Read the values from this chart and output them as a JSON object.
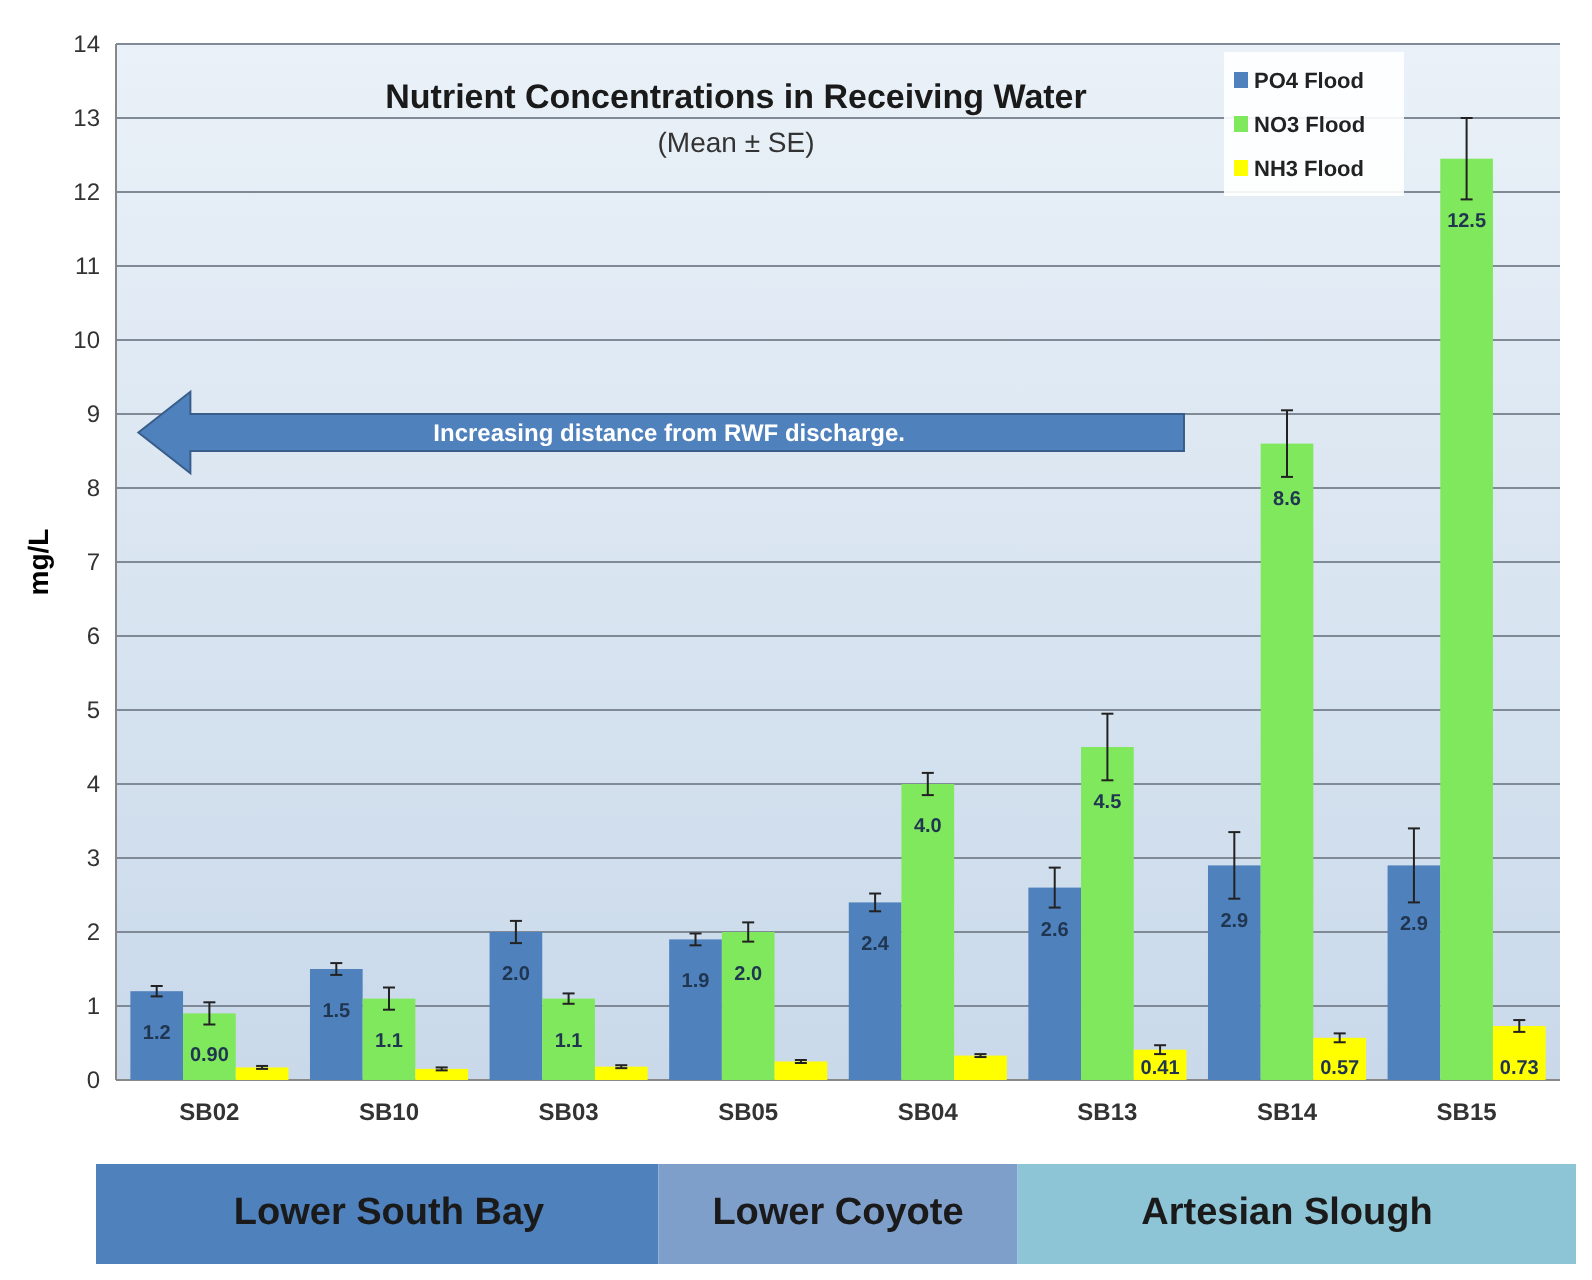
{
  "chart_data": {
    "type": "bar",
    "title": "Nutrient Concentrations in Receiving Water",
    "subtitle": "(Mean ± SE)",
    "ylabel": "mg/L",
    "categories": [
      "SB02",
      "SB10",
      "SB03",
      "SB05",
      "SB04",
      "SB13",
      "SB14",
      "SB15"
    ],
    "series": [
      {
        "name": "PO4 Flood",
        "color": "#4f81bd",
        "values": [
          1.2,
          1.5,
          2.0,
          1.9,
          2.4,
          2.6,
          2.9,
          2.9
        ],
        "errors": [
          0.07,
          0.08,
          0.15,
          0.08,
          0.12,
          0.27,
          0.45,
          0.5
        ],
        "value_labels": [
          "1.2",
          "1.5",
          "2.0",
          "1.9",
          "2.4",
          "2.6",
          "2.9",
          "2.9"
        ]
      },
      {
        "name": "NO3 Flood",
        "color": "#80e85c",
        "values": [
          0.9,
          1.1,
          1.1,
          2.0,
          4.0,
          4.5,
          8.6,
          12.45
        ],
        "errors": [
          0.15,
          0.15,
          0.07,
          0.13,
          0.15,
          0.45,
          0.45,
          0.55
        ],
        "value_labels": [
          "0.90",
          "1.1",
          "1.1",
          "2.0",
          "4.0",
          "4.5",
          "8.6",
          "12.5"
        ]
      },
      {
        "name": "NH3 Flood",
        "color": "#ffff00",
        "values": [
          0.17,
          0.15,
          0.18,
          0.25,
          0.33,
          0.41,
          0.57,
          0.73
        ],
        "errors": [
          0.02,
          0.02,
          0.02,
          0.02,
          0.02,
          0.06,
          0.06,
          0.08
        ],
        "value_labels": [
          null,
          null,
          null,
          null,
          null,
          "0.41",
          "0.57",
          "0.73"
        ]
      }
    ],
    "ylim": [
      0,
      14
    ],
    "yticks": [
      0,
      1,
      2,
      3,
      4,
      5,
      6,
      7,
      8,
      9,
      10,
      11,
      12,
      13,
      14
    ],
    "grid": "y",
    "legend": "top right",
    "annotations": [
      "Increasing distance from RWF discharge.",
      "Lower South Bay",
      "Lower Coyote",
      "Artesian Slough"
    ]
  }
}
